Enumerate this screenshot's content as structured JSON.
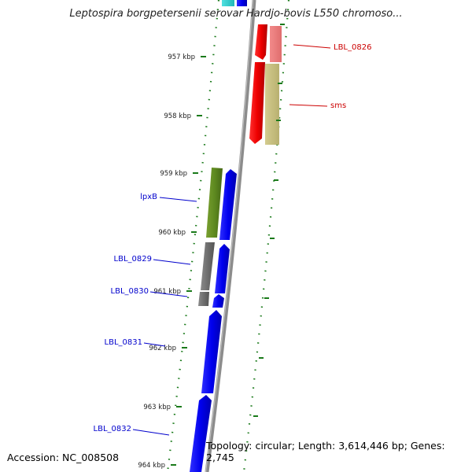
{
  "title": "Leptospira borgpetersenii serovar Hardjo-bovis L550 chromoso...",
  "accession_text": "Accession: NC_008508",
  "topology_text": "Topology: circular; Length: 3,614,446 bp; Genes: 2,745",
  "colors": {
    "backbone": "#8c8c8c",
    "tick": "#1a7a1a",
    "forward_gene": "#0000ee",
    "reverse_gene": "#ee0000",
    "label_blue": "#0000cc",
    "label_red": "#cc0000"
  },
  "scale_labels": [
    {
      "kbp": 957,
      "text": "957 kbp"
    },
    {
      "kbp": 958,
      "text": "958 kbp"
    },
    {
      "kbp": 959,
      "text": "959 kbp"
    },
    {
      "kbp": 960,
      "text": "960 kbp"
    },
    {
      "kbp": 961,
      "text": "961 kbp"
    },
    {
      "kbp": 962,
      "text": "962 kbp"
    },
    {
      "kbp": 963,
      "text": "963 kbp"
    },
    {
      "kbp": 964,
      "text": "964 kbp"
    }
  ],
  "genes": [
    {
      "name": "LBL_0826",
      "color": "red"
    },
    {
      "name": "sms",
      "color": "red"
    },
    {
      "name": "lpxB",
      "color": "blue"
    },
    {
      "name": "LBL_0829",
      "color": "blue"
    },
    {
      "name": "LBL_0830",
      "color": "blue"
    },
    {
      "name": "LBL_0831",
      "color": "blue"
    },
    {
      "name": "LBL_0832",
      "color": "blue"
    }
  ]
}
